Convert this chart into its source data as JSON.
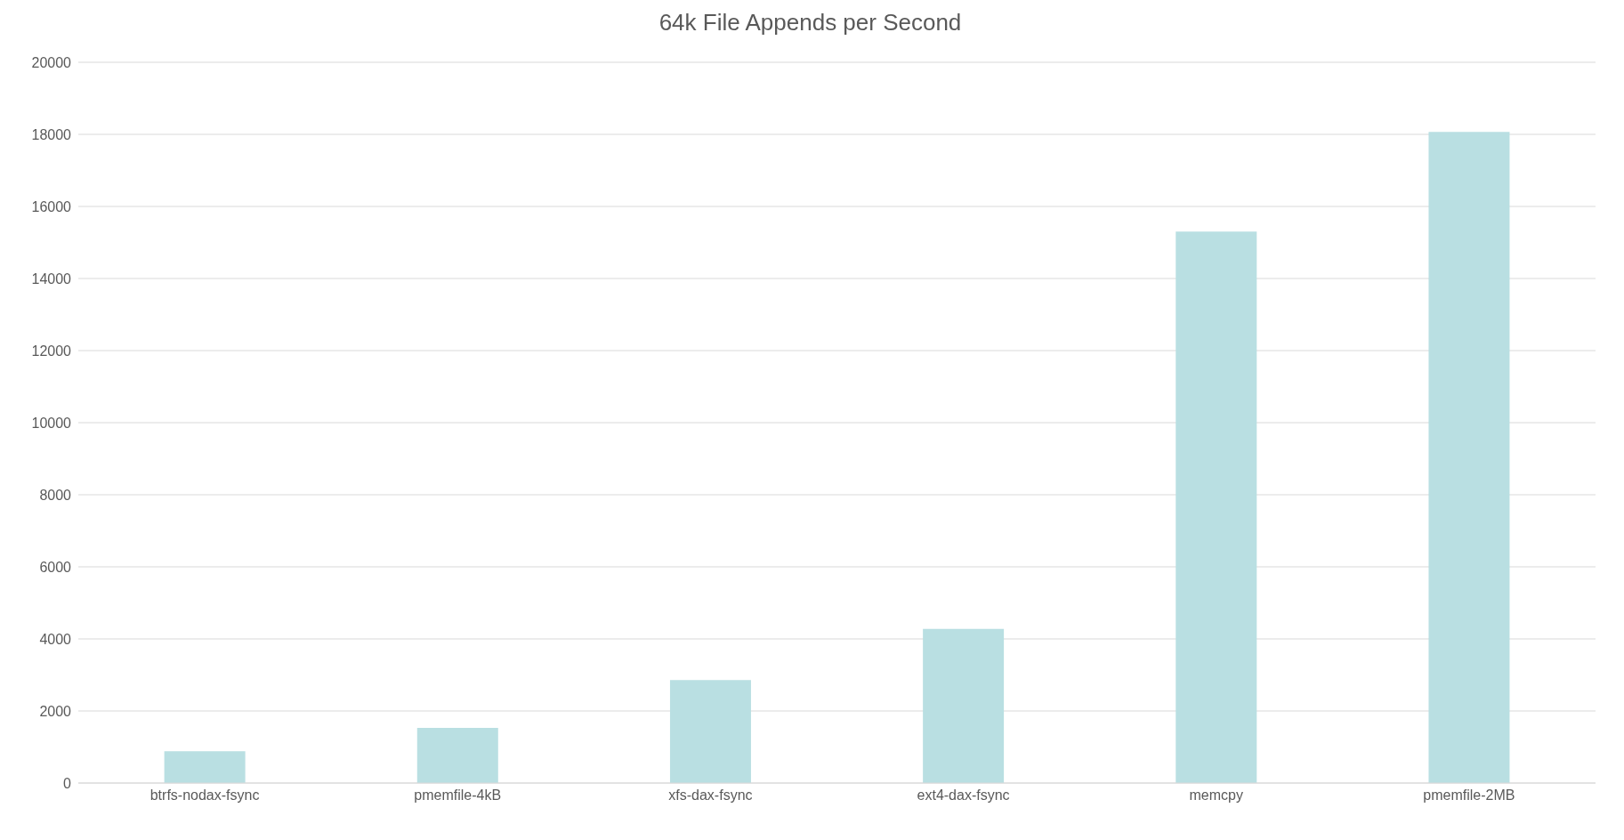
{
  "chart_data": {
    "type": "bar",
    "title": "64k File Appends per Second",
    "categories": [
      "btrfs-nodax-fsync",
      "pmemfile-4kB",
      "xfs-dax-fsync",
      "ext4-dax-fsync",
      "memcpy",
      "pmemfile-2MB"
    ],
    "values": [
      880,
      1530,
      2860,
      4280,
      15300,
      18070
    ],
    "color": "#b9dfe2",
    "ylim": [
      0,
      20000
    ],
    "yticks": [
      0,
      2000,
      4000,
      6000,
      8000,
      10000,
      12000,
      14000,
      16000,
      18000,
      20000
    ],
    "grid": "y"
  }
}
